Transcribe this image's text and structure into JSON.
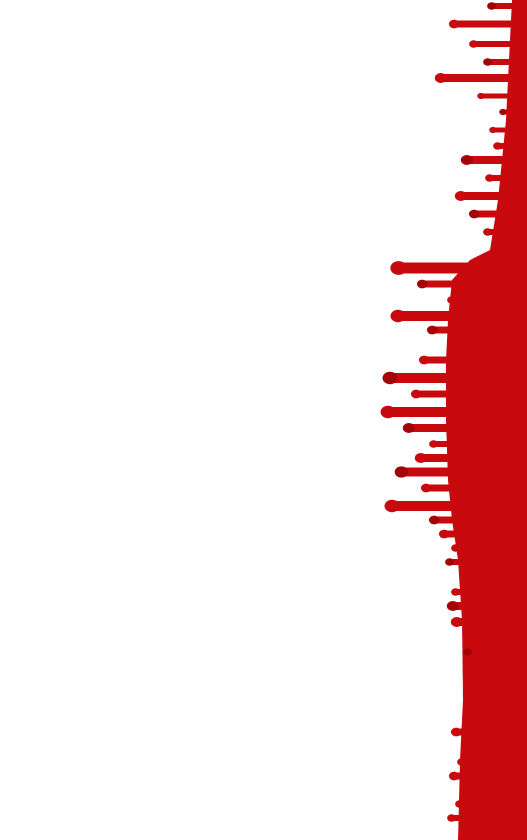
{
  "image": {
    "subject": "red-paint-drips",
    "colors": {
      "background": "#ffffff",
      "paint": "#c8090d",
      "paint_shadow": "#a30408"
    }
  }
}
